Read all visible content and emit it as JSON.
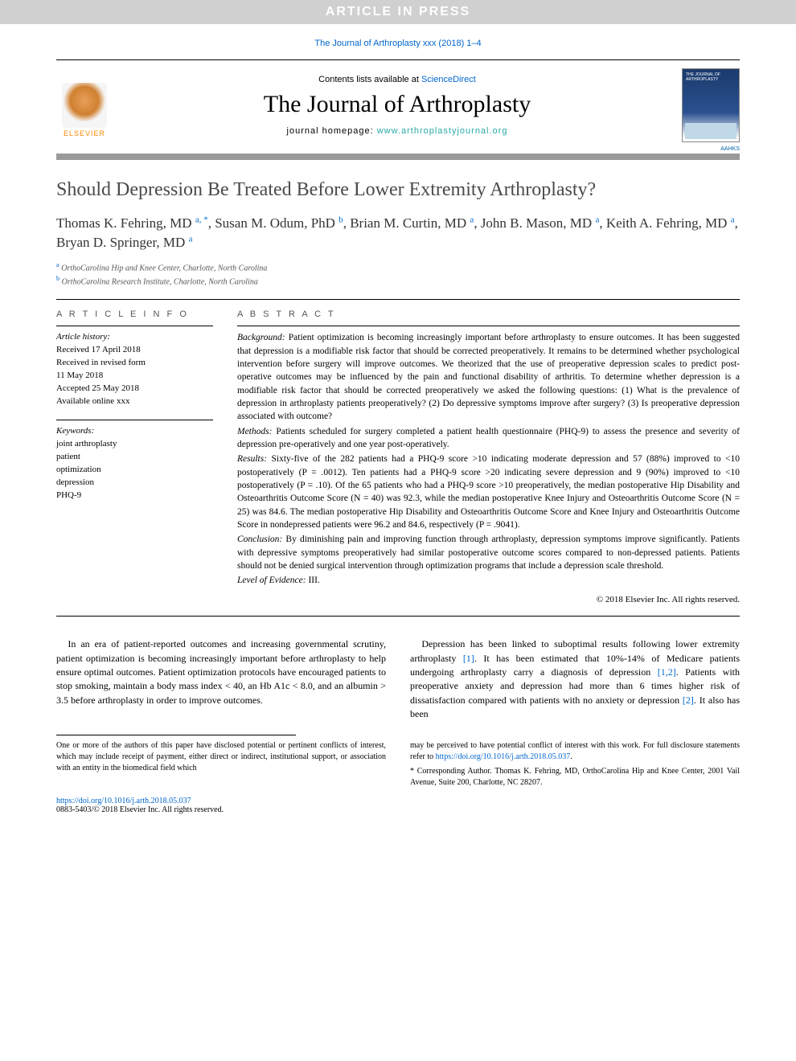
{
  "banner": {
    "text": "ARTICLE IN PRESS"
  },
  "citation": "The Journal of Arthroplasty xxx (2018) 1–4",
  "masthead": {
    "contents_prefix": "Contents lists available at ",
    "contents_link": "ScienceDirect",
    "journal": "The Journal of Arthroplasty",
    "homepage_prefix": "journal homepage: ",
    "homepage_url": "www.arthroplastyjournal.org",
    "publisher_logo_text": "ELSEVIER",
    "cover_label": "THE JOURNAL OF ARTHROPLASTY",
    "society_badge": "AAHKS"
  },
  "title": "Should Depression Be Treated Before Lower Extremity Arthroplasty?",
  "authors_html": "Thomas K. Fehring, MD <sup>a, *</sup>, Susan M. Odum, PhD <sup>b</sup>, Brian M. Curtin, MD <sup>a</sup>, John B. Mason, MD <sup>a</sup>, Keith A. Fehring, MD <sup>a</sup>, Bryan D. Springer, MD <sup>a</sup>",
  "affiliations": [
    {
      "mark": "a",
      "text": "OrthoCarolina Hip and Knee Center, Charlotte, North Carolina"
    },
    {
      "mark": "b",
      "text": "OrthoCarolina Research Institute, Charlotte, North Carolina"
    }
  ],
  "headers": {
    "info": "A R T I C L E   I N F O",
    "abstract": "A B S T R A C T"
  },
  "history": {
    "label": "Article history:",
    "lines": [
      "Received 17 April 2018",
      "Received in revised form",
      "11 May 2018",
      "Accepted 25 May 2018",
      "Available online xxx"
    ]
  },
  "keywords": {
    "label": "Keywords:",
    "items": [
      "joint arthroplasty",
      "patient",
      "optimization",
      "depression",
      "PHQ-9"
    ]
  },
  "abstract": {
    "background_label": "Background:",
    "background": "Patient optimization is becoming increasingly important before arthroplasty to ensure outcomes. It has been suggested that depression is a modifiable risk factor that should be corrected preoperatively. It remains to be determined whether psychological intervention before surgery will improve outcomes. We theorized that the use of preoperative depression scales to predict post-operative outcomes may be influenced by the pain and functional disability of arthritis. To determine whether depression is a modifiable risk factor that should be corrected preoperatively we asked the following questions: (1) What is the prevalence of depression in arthroplasty patients preoperatively? (2) Do depressive symptoms improve after surgery? (3) Is preoperative depression associated with outcome?",
    "methods_label": "Methods:",
    "methods": "Patients scheduled for surgery completed a patient health questionnaire (PHQ-9) to assess the presence and severity of depression pre-operatively and one year post-operatively.",
    "results_label": "Results:",
    "results": "Sixty-five of the 282 patients had a PHQ-9 score >10 indicating moderate depression and 57 (88%) improved to <10 postoperatively (P = .0012). Ten patients had a PHQ-9 score >20 indicating severe depression and 9 (90%) improved to <10 postoperatively (P = .10). Of the 65 patients who had a PHQ-9 score >10 preoperatively, the median postoperative Hip Disability and Osteoarthritis Outcome Score (N = 40) was 92.3, while the median postoperative Knee Injury and Osteoarthritis Outcome Score (N = 25) was 84.6. The median postoperative Hip Disability and Osteoarthritis Outcome Score and Knee Injury and Osteoarthritis Outcome Score in nondepressed patients were 96.2 and 84.6, respectively (P = .9041).",
    "conclusion_label": "Conclusion:",
    "conclusion": "By diminishing pain and improving function through arthroplasty, depression symptoms improve significantly. Patients with depressive symptoms preoperatively had similar postoperative outcome scores compared to non-depressed patients. Patients should not be denied surgical intervention through optimization programs that include a depression scale threshold.",
    "loe_label": "Level of Evidence:",
    "loe": "III.",
    "copyright": "© 2018 Elsevier Inc. All rights reserved."
  },
  "body": {
    "col1": "In an era of patient-reported outcomes and increasing governmental scrutiny, patient optimization is becoming increasingly important before arthroplasty to help ensure optimal outcomes. Patient optimization protocols have encouraged patients to stop smoking, maintain a body mass index < 40, an Hb A1c < 8.0, and an albumin > 3.5 before arthroplasty in order to improve outcomes.",
    "col2_pre": "Depression has been linked to suboptimal results following lower extremity arthroplasty ",
    "col2_ref1": "[1]",
    "col2_mid1": ". It has been estimated that 10%-14% of Medicare patients undergoing arthroplasty carry a diagnosis of depression ",
    "col2_ref2": "[1,2]",
    "col2_mid2": ". Patients with preoperative anxiety and depression had more than 6 times higher risk of dissatisfaction compared with patients with no anxiety or depression ",
    "col2_ref3": "[2]",
    "col2_end": ". It also has been"
  },
  "footnotes": {
    "left": "One or more of the authors of this paper have disclosed potential or pertinent conflicts of interest, which may include receipt of payment, either direct or indirect, institutional support, or association with an entity in the biomedical field which",
    "right_pre": "may be perceived to have potential conflict of interest with this work. For full disclosure statements refer to ",
    "right_link": "https://doi.org/10.1016/j.arth.2018.05.037",
    "right_post": ".",
    "corr": "* Corresponding Author. Thomas K. Fehring, MD, OrthoCarolina Hip and Knee Center, 2001 Vail Avenue, Suite 200, Charlotte, NC 28207."
  },
  "doi": {
    "url": "https://doi.org/10.1016/j.arth.2018.05.037",
    "issn_line": "0883-5403/© 2018 Elsevier Inc. All rights reserved."
  },
  "colors": {
    "banner_bg": "#d0d0d0",
    "banner_text": "#ffffff",
    "link": "#0066cc",
    "homepage_link": "#2aa8a8",
    "rule_thick": "#9a9a9a",
    "text": "#000000",
    "title_text": "#4a4a4a"
  }
}
